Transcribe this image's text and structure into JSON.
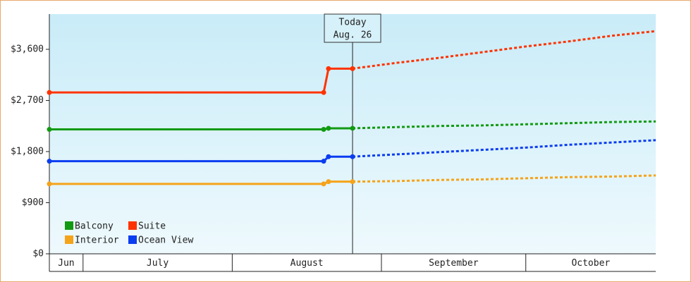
{
  "chart_data": {
    "type": "line",
    "x": [
      175,
      232,
      233,
      238,
      247,
      256,
      265,
      274,
      283,
      292,
      301
    ],
    "xlim": [
      175,
      301
    ],
    "xticks": [
      {
        "value": 175,
        "label": "Jun"
      },
      {
        "value": 182,
        "label": "July"
      },
      {
        "value": 213,
        "label": "August"
      },
      {
        "value": 244,
        "label": "September"
      },
      {
        "value": 274,
        "label": "October"
      }
    ],
    "ylim": [
      0,
      4220
    ],
    "yticks": [
      {
        "value": 0,
        "label": "$0"
      },
      {
        "value": 900,
        "label": "$900"
      },
      {
        "value": 1800,
        "label": "$1,800"
      },
      {
        "value": 2700,
        "label": "$2,700"
      },
      {
        "value": 3600,
        "label": "$3,600"
      }
    ],
    "today": 238,
    "today_label": [
      "Today",
      "Aug. 26"
    ],
    "legend": "bottom-left",
    "series": [
      {
        "name": "Balcony",
        "color": "#129a12",
        "values": [
          2190,
          2190,
          2210,
          2210,
          2230,
          2250,
          2260,
          2280,
          2300,
          2320,
          2330
        ]
      },
      {
        "name": "Suite",
        "color": "#ff3300",
        "values": [
          2840,
          2840,
          3260,
          3260,
          3360,
          3450,
          3550,
          3650,
          3740,
          3840,
          3920
        ]
      },
      {
        "name": "Interior",
        "color": "#f5a31a",
        "values": [
          1230,
          1230,
          1270,
          1270,
          1280,
          1300,
          1310,
          1330,
          1350,
          1360,
          1380
        ]
      },
      {
        "name": "Ocean View",
        "color": "#0a3cf0",
        "values": [
          1630,
          1630,
          1710,
          1710,
          1750,
          1790,
          1830,
          1870,
          1920,
          1960,
          2000
        ]
      }
    ]
  }
}
